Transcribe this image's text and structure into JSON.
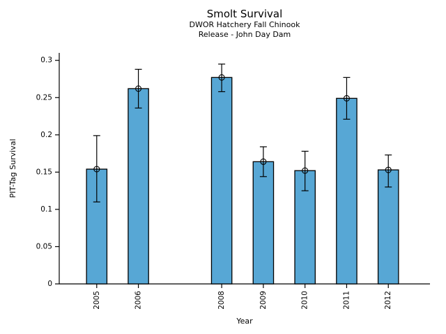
{
  "chart_data": {
    "type": "bar",
    "title": "Smolt Survival",
    "subtitle_lines": [
      "DWOR Hatchery Fall Chinook",
      "Release - John Day Dam"
    ],
    "xlabel": "Year",
    "ylabel": "PIT-Tag Survival",
    "categories": [
      "2005",
      "2006",
      "2008",
      "2009",
      "2010",
      "2011",
      "2012"
    ],
    "x": [
      2005,
      2006,
      2008,
      2009,
      2010,
      2011,
      2012
    ],
    "values": [
      0.154,
      0.262,
      0.277,
      0.164,
      0.152,
      0.249,
      0.153
    ],
    "error_low": [
      0.11,
      0.236,
      0.258,
      0.144,
      0.125,
      0.221,
      0.13
    ],
    "error_high": [
      0.199,
      0.288,
      0.295,
      0.184,
      0.178,
      0.277,
      0.173
    ],
    "xlim": [
      2004.1,
      2013.0
    ],
    "ylim": [
      0,
      0.31
    ],
    "yticks": [
      0,
      0.05,
      0.1,
      0.15,
      0.2,
      0.25,
      0.3
    ],
    "ytick_labels": [
      "0",
      "0.05",
      "0.1",
      "0.15",
      "0.2",
      "0.25",
      "0.3"
    ],
    "bar_width_units": 0.49,
    "bar_color": "#57A7D5",
    "edge_color": "#000000",
    "axis_color": "#000000",
    "marker": "open-circle",
    "grid": false,
    "legend": null,
    "background": "#ffffff"
  }
}
